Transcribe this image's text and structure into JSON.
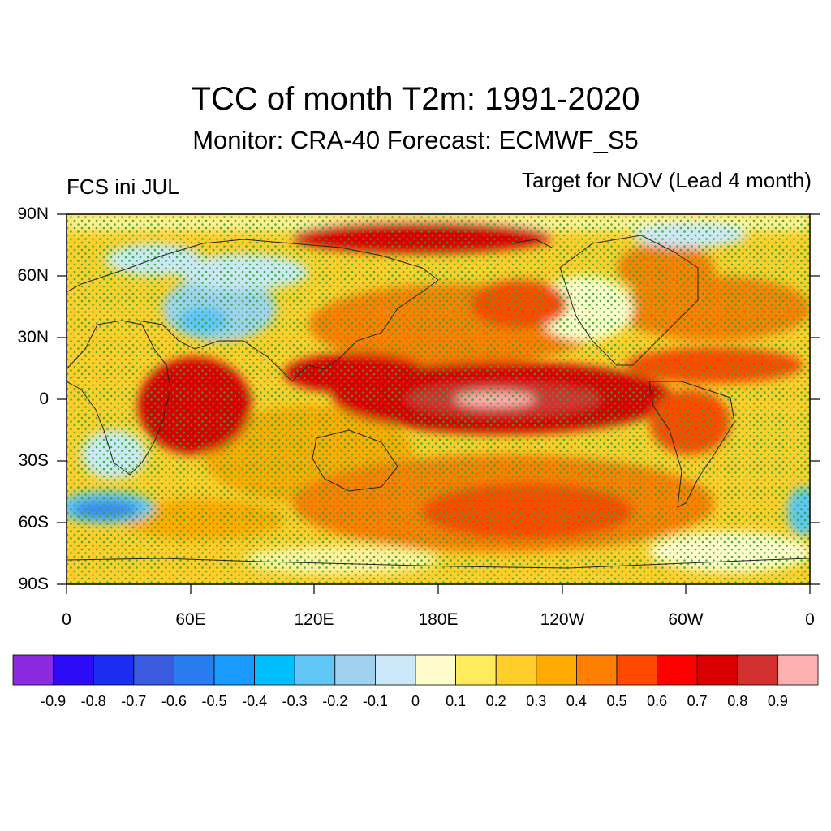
{
  "title": "TCC of month T2m: 1991-2020",
  "subtitle": "Monitor: CRA-40   Forecast: ECMWF_S5",
  "left_label": "FCS ini JUL",
  "right_label": "Target for NOV (Lead 4 month)",
  "map": {
    "projection": "cylindrical-equidistant",
    "lon_range": [
      0,
      360
    ],
    "lat_range": [
      -90,
      90
    ],
    "y_tick_labels": [
      "90N",
      "60N",
      "30N",
      "0",
      "30S",
      "60S",
      "90S"
    ],
    "x_tick_labels": [
      "0",
      "60E",
      "120E",
      "180E",
      "120W",
      "60W",
      "0"
    ],
    "stippling": "green dots mark significant correlation"
  },
  "colorbar": {
    "colors": [
      "#8a2be2",
      "#2d0cf5",
      "#1a2df0",
      "#3a5be0",
      "#2a7df0",
      "#1a9bff",
      "#00bfff",
      "#5fc6f5",
      "#a0d2f0",
      "#cce7f7",
      "#fffccc",
      "#ffec5c",
      "#ffce2a",
      "#ffab00",
      "#ff7f00",
      "#ff4a00",
      "#ff0000",
      "#d80000",
      "#d33030",
      "#ffb0b0"
    ],
    "labels": [
      "-0.9",
      "-0.8",
      "-0.7",
      "-0.6",
      "-0.5",
      "-0.4",
      "-0.3",
      "-0.2",
      "-0.1",
      "0",
      "0.1",
      "0.2",
      "0.3",
      "0.4",
      "0.5",
      "0.6",
      "0.7",
      "0.8",
      "0.9"
    ]
  }
}
